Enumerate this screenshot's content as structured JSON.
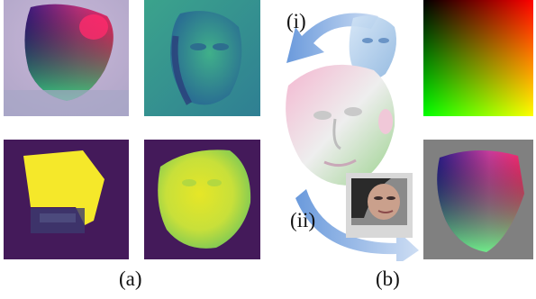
{
  "figure": {
    "label_a": "(a)",
    "label_b": "(b)",
    "label_i": "(i)",
    "label_ii": "(ii)"
  },
  "colors": {
    "viridis_dark": "#440154",
    "viridis_teal": "#26828e",
    "viridis_green": "#5ec962",
    "viridis_yellow": "#fde725",
    "uv_red": "#ff1e6e",
    "uv_green": "#00ff40",
    "uv_blue": "#1a1a9a",
    "uv_magenta": "#c83cc8",
    "arrow_blue": "#5a8fd8",
    "mesh_gray": "#e8e8e8",
    "background_gray": "#808080"
  },
  "panels": {
    "a_top_left": "uv-map-prediction",
    "a_top_right": "depth-map-prediction",
    "a_bottom_left": "visibility-mask",
    "a_bottom_right": "confidence-map",
    "b_mesh": "3d-face-mesh",
    "b_uv_gradient": "uv-color-gradient",
    "b_uv_projection": "projected-uv-map",
    "b_face_image": "input-face-photo"
  }
}
